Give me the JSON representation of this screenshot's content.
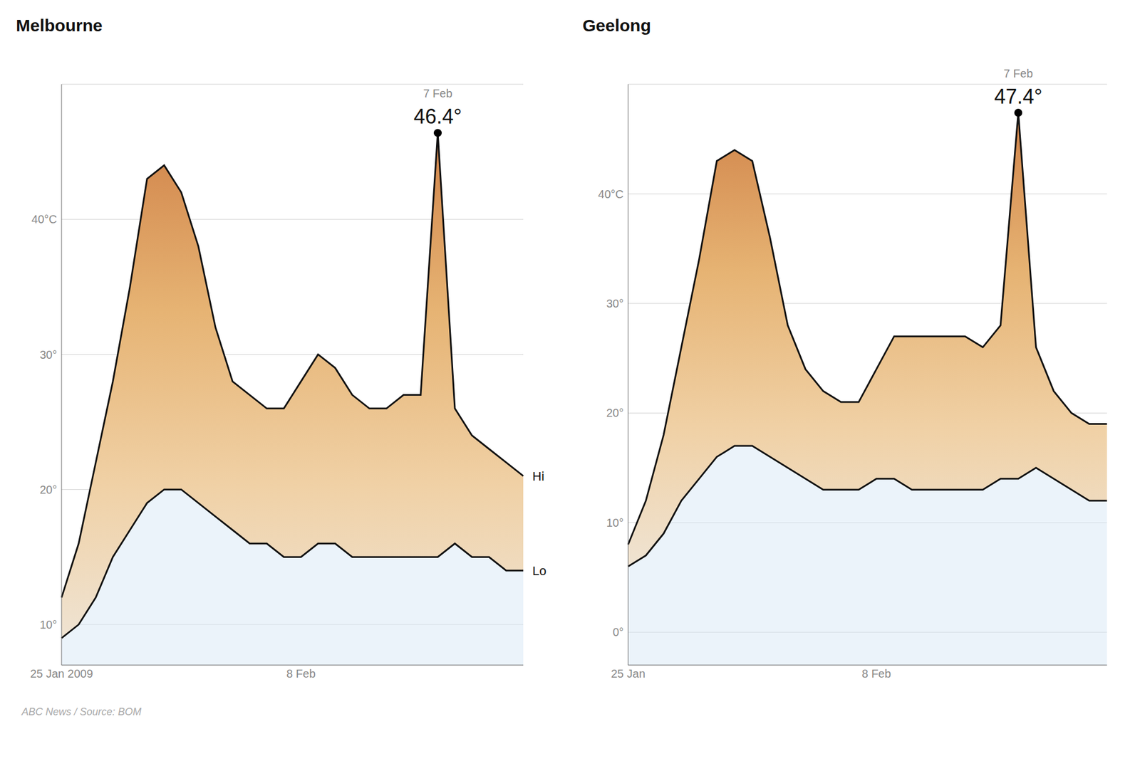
{
  "chart_data": [
    {
      "type": "line",
      "title": "Melbourne",
      "categories": [
        "25 Jan 2009",
        null,
        null,
        null,
        null,
        null,
        null,
        null,
        null,
        null,
        null,
        null,
        null,
        null,
        "8 Feb",
        null,
        null,
        null,
        null,
        null,
        null,
        null,
        null,
        null,
        null,
        null,
        null,
        null
      ],
      "series": [
        {
          "name": "Hi",
          "color": "#111111",
          "values": [
            12,
            16,
            22,
            28,
            35,
            43,
            44,
            42,
            38,
            32,
            28,
            27,
            26,
            26,
            28,
            30,
            29,
            27,
            26,
            26,
            27,
            27,
            46.4,
            26,
            24,
            23,
            22,
            21
          ]
        },
        {
          "name": "Lo",
          "color": "#111111",
          "values": [
            9,
            10,
            12,
            15,
            17,
            19,
            20,
            20,
            19,
            18,
            17,
            16,
            16,
            15,
            15,
            16,
            16,
            15,
            15,
            15,
            15,
            15,
            15,
            16,
            15,
            15,
            14,
            14
          ]
        },
        {
          "type": "scatter",
          "marker": "o",
          "color": "#000000",
          "values": [
            null,
            null,
            null,
            null,
            null,
            null,
            null,
            null,
            null,
            null,
            null,
            null,
            null,
            null,
            null,
            null,
            null,
            null,
            null,
            null,
            null,
            null,
            46.4,
            null,
            null,
            null,
            null,
            null
          ]
        }
      ],
      "ylim": [
        7,
        50
      ],
      "yticks": [
        {
          "value": 10,
          "label": "10°"
        },
        {
          "value": 20,
          "label": "20°"
        },
        {
          "value": 30,
          "label": "30°"
        },
        {
          "value": 40,
          "label": "40°C"
        }
      ],
      "grid": true,
      "annotations": [
        {
          "x": 22,
          "y": 46.4,
          "text": "7 Feb"
        },
        {
          "x": 22,
          "y": 46.4,
          "text": "46.4°"
        },
        {
          "text": "ABC News / Source: BOM"
        }
      ]
    },
    {
      "type": "line",
      "title": "Geelong",
      "categories": [
        "25 Jan",
        null,
        null,
        null,
        null,
        null,
        null,
        null,
        null,
        null,
        null,
        null,
        null,
        null,
        "8 Feb",
        null,
        null,
        null,
        null,
        null,
        null,
        null,
        null,
        null,
        null,
        null,
        null,
        null
      ],
      "series": [
        {
          "color": "#111111",
          "values": [
            8,
            12,
            18,
            26,
            34,
            43,
            44,
            43,
            36,
            28,
            24,
            22,
            21,
            21,
            24,
            27,
            27,
            27,
            27,
            27,
            26,
            28,
            47.4,
            26,
            22,
            20,
            19,
            19
          ]
        },
        {
          "color": "#111111",
          "values": [
            6,
            7,
            9,
            12,
            14,
            16,
            17,
            17,
            16,
            15,
            14,
            13,
            13,
            13,
            14,
            14,
            13,
            13,
            13,
            13,
            13,
            14,
            14,
            15,
            14,
            13,
            12,
            12
          ]
        },
        {
          "type": "scatter",
          "marker": "o",
          "color": "#000000",
          "values": [
            null,
            null,
            null,
            null,
            null,
            null,
            null,
            null,
            null,
            null,
            null,
            null,
            null,
            null,
            null,
            null,
            null,
            null,
            null,
            null,
            null,
            null,
            47.4,
            null,
            null,
            null,
            null,
            null
          ]
        }
      ],
      "ylim": [
        -3,
        50
      ],
      "yticks": [
        {
          "value": 0,
          "label": "0°"
        },
        {
          "value": 10,
          "label": "10°"
        },
        {
          "value": 20,
          "label": "20°"
        },
        {
          "value": 30,
          "label": "30°"
        },
        {
          "value": 40,
          "label": "40°C"
        }
      ],
      "grid": true,
      "annotations": [
        {
          "x": 22,
          "y": 47.4,
          "text": "7 Feb"
        },
        {
          "x": 22,
          "y": 47.4,
          "text": "47.4°"
        }
      ]
    }
  ]
}
